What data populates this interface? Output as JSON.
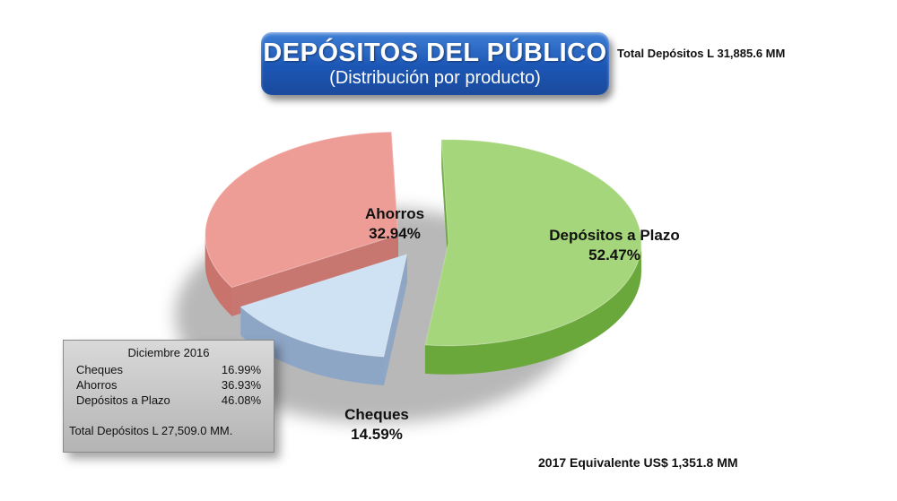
{
  "header": {
    "title": "DEPÓSITOS DEL PÚBLICO",
    "subtitle": "(Distribución por producto)",
    "total": "Total Depósitos L 31,885.6  MM"
  },
  "footer": {
    "equivalent": "2017 Equivalente US$ 1,351.8 MM"
  },
  "dec2016": {
    "title": "Diciembre 2016",
    "rows": [
      {
        "label": "Cheques",
        "value": "16.99%"
      },
      {
        "label": "Ahorros",
        "value": "36.93%"
      },
      {
        "label": "Depósitos a Plazo",
        "value": "46.08%"
      }
    ],
    "total": "Total Depósitos  L 27,509.0 MM."
  },
  "colors": {
    "plazo_top": "#a6d67c",
    "plazo_side": "#6aa83c",
    "ahorros_top": "#ee9c96",
    "ahorros_side": "#c9736d",
    "cheques_top": "#cfe2f3",
    "cheques_side": "#8ea6c6"
  },
  "chart_data": {
    "type": "pie",
    "title": "",
    "slices": [
      {
        "label": "Depósitos a Plazo",
        "value": 52.47,
        "value_text": "52.47%"
      },
      {
        "label": "Cheques",
        "value": 14.59,
        "value_text": "14.59%"
      },
      {
        "label": "Ahorros",
        "value": 32.94,
        "value_text": "32.94%"
      }
    ]
  }
}
